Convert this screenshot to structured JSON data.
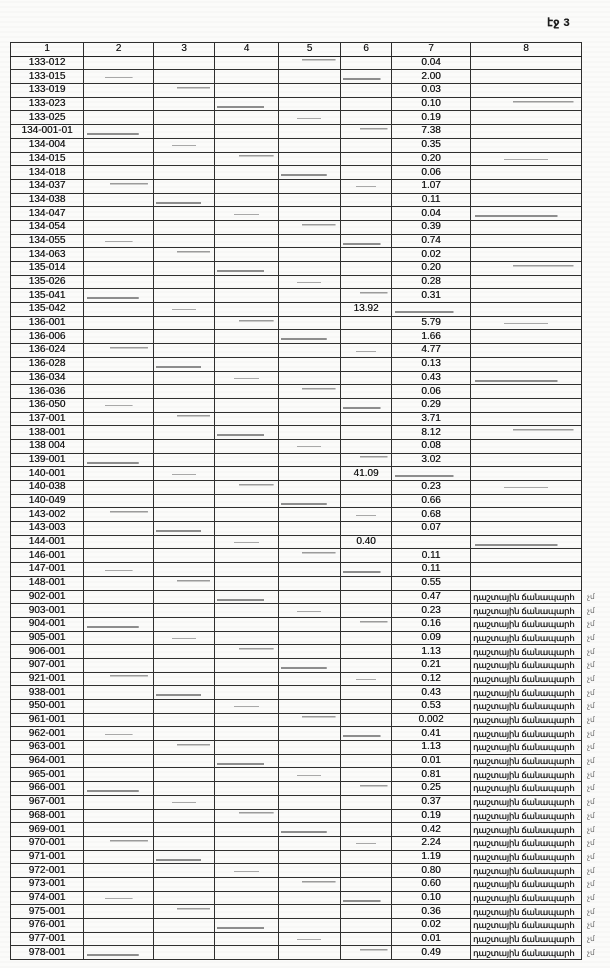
{
  "page": {
    "label": "էջ 3"
  },
  "table": {
    "headers": [
      "1",
      "2",
      "3",
      "4",
      "5",
      "6",
      "7",
      "8"
    ],
    "road_label": "դաշտային ճանապարհ",
    "margin_mark": "չմ",
    "rows": [
      {
        "code": "133-012",
        "c6": "",
        "c7": "0.04",
        "c8": "",
        "m": ""
      },
      {
        "code": "133-015",
        "c6": "",
        "c7": "2.00",
        "c8": "",
        "m": ""
      },
      {
        "code": "133-019",
        "c6": "",
        "c7": "0.03",
        "c8": "",
        "m": ""
      },
      {
        "code": "133-023",
        "c6": "",
        "c7": "0.10",
        "c8": "",
        "m": ""
      },
      {
        "code": "133-025",
        "c6": "",
        "c7": "0.19",
        "c8": "",
        "m": ""
      },
      {
        "code": "134-001-01",
        "c6": "",
        "c7": "7.38",
        "c8": "",
        "m": ""
      },
      {
        "code": "134-004",
        "c6": "",
        "c7": "0.35",
        "c8": "",
        "m": ""
      },
      {
        "code": "134-015",
        "c6": "",
        "c7": "0.20",
        "c8": "",
        "m": ""
      },
      {
        "code": "134-018",
        "c6": "",
        "c7": "0.06",
        "c8": "",
        "m": ""
      },
      {
        "code": "134-037",
        "c6": "",
        "c7": "1.07",
        "c8": "",
        "m": ""
      },
      {
        "code": "134-038",
        "c6": "",
        "c7": "0.11",
        "c8": "",
        "m": ""
      },
      {
        "code": "134-047",
        "c6": "",
        "c7": "0.04",
        "c8": "",
        "m": ""
      },
      {
        "code": "134-054",
        "c6": "",
        "c7": "0.39",
        "c8": "",
        "m": ""
      },
      {
        "code": "134-055",
        "c6": "",
        "c7": "0.74",
        "c8": "",
        "m": ""
      },
      {
        "code": "134-063",
        "c6": "",
        "c7": "0.02",
        "c8": "",
        "m": ""
      },
      {
        "code": "135-014",
        "c6": "",
        "c7": "0.20",
        "c8": "",
        "m": ""
      },
      {
        "code": "135-026",
        "c6": "",
        "c7": "0.28",
        "c8": "",
        "m": ""
      },
      {
        "code": "135-041",
        "c6": "",
        "c7": "0.31",
        "c8": "",
        "m": ""
      },
      {
        "code": "135-042",
        "c6": "13.92",
        "c7": "",
        "c8": "",
        "m": ""
      },
      {
        "code": "136-001",
        "c6": "",
        "c7": "5.79",
        "c8": "",
        "m": ""
      },
      {
        "code": "136-006",
        "c6": "",
        "c7": "1.66",
        "c8": "",
        "m": ""
      },
      {
        "code": "136-024",
        "c6": "",
        "c7": "4.77",
        "c8": "",
        "m": ""
      },
      {
        "code": "136-028",
        "c6": "",
        "c7": "0.13",
        "c8": "",
        "m": ""
      },
      {
        "code": "136-034",
        "c6": "",
        "c7": "0.43",
        "c8": "",
        "m": ""
      },
      {
        "code": "136-036",
        "c6": "",
        "c7": "0.06",
        "c8": "",
        "m": ""
      },
      {
        "code": "136-050",
        "c6": "",
        "c7": "0.29",
        "c8": "",
        "m": ""
      },
      {
        "code": "137-001",
        "c6": "",
        "c7": "3.71",
        "c8": "",
        "m": ""
      },
      {
        "code": "138-001",
        "c6": "",
        "c7": "8.12",
        "c8": "",
        "m": ""
      },
      {
        "code": "138 004",
        "c6": "",
        "c7": "0.08",
        "c8": "",
        "m": ""
      },
      {
        "code": "139-001",
        "c6": "",
        "c7": "3.02",
        "c8": "",
        "m": ""
      },
      {
        "code": "140-001",
        "c6": "41.09",
        "c7": "",
        "c8": "",
        "m": ""
      },
      {
        "code": "140-038",
        "c6": "",
        "c7": "0.23",
        "c8": "",
        "m": ""
      },
      {
        "code": "140-049",
        "c6": "",
        "c7": "0.66",
        "c8": "",
        "m": ""
      },
      {
        "code": "143-002",
        "c6": "",
        "c7": "0.68",
        "c8": "",
        "m": ""
      },
      {
        "code": "143-003",
        "c6": "",
        "c7": "0.07",
        "c8": "",
        "m": ""
      },
      {
        "code": "144-001",
        "c6": "0.40",
        "c7": "",
        "c8": "",
        "m": ""
      },
      {
        "code": "146-001",
        "c6": "",
        "c7": "0.11",
        "c8": "",
        "m": ""
      },
      {
        "code": "147-001",
        "c6": "",
        "c7": "0.11",
        "c8": "",
        "m": ""
      },
      {
        "code": "148-001",
        "c6": "",
        "c7": "0.55",
        "c8": "",
        "m": ""
      },
      {
        "code": "902-001",
        "c6": "",
        "c7": "0.47",
        "c8": "դաշտային ճանապարհ",
        "m": "չմ"
      },
      {
        "code": "903-001",
        "c6": "",
        "c7": "0.23",
        "c8": "դաշտային ճանապարհ",
        "m": "չմ"
      },
      {
        "code": "904-001",
        "c6": "",
        "c7": "0.16",
        "c8": "դաշտային ճանապարհ",
        "m": "չմ"
      },
      {
        "code": "905-001",
        "c6": "",
        "c7": "0.09",
        "c8": "դաշտային ճանապարհ",
        "m": "չմ"
      },
      {
        "code": "906-001",
        "c6": "",
        "c7": "1.13",
        "c8": "դաշտային ճանապարհ",
        "m": "չմ"
      },
      {
        "code": "907-001",
        "c6": "",
        "c7": "0.21",
        "c8": "դաշտային ճանապարհ",
        "m": "չմ"
      },
      {
        "code": "921-001",
        "c6": "",
        "c7": "0.12",
        "c8": "դաշտային ճանապարհ",
        "m": "չմ"
      },
      {
        "code": "938-001",
        "c6": "",
        "c7": "0.43",
        "c8": "դաշտային ճանապարհ",
        "m": "չմ"
      },
      {
        "code": "950-001",
        "c6": "",
        "c7": "0.53",
        "c8": "դաշտային ճանապարհ",
        "m": "չմ"
      },
      {
        "code": "961-001",
        "c6": "",
        "c7": "0.002",
        "c8": "դաշտային ճանապարհ",
        "m": "չմ"
      },
      {
        "code": "962-001",
        "c6": "",
        "c7": "0.41",
        "c8": "դաշտային ճանապարհ",
        "m": "չմ"
      },
      {
        "code": "963-001",
        "c6": "",
        "c7": "1.13",
        "c8": "դաշտային ճանապարհ",
        "m": "չմ"
      },
      {
        "code": "964-001",
        "c6": "",
        "c7": "0.01",
        "c8": "դաշտային ճանապարհ",
        "m": "չմ"
      },
      {
        "code": "965-001",
        "c6": "",
        "c7": "0.81",
        "c8": "դաշտային ճանապարհ",
        "m": "չմ"
      },
      {
        "code": "966-001",
        "c6": "",
        "c7": "0.25",
        "c8": "դաշտային ճանապարհ",
        "m": "չմ"
      },
      {
        "code": "967-001",
        "c6": "",
        "c7": "0.37",
        "c8": "դաշտային ճանապարհ",
        "m": "չմ"
      },
      {
        "code": "968-001",
        "c6": "",
        "c7": "0.19",
        "c8": "դաշտային ճանապարհ",
        "m": "չմ"
      },
      {
        "code": "969-001",
        "c6": "",
        "c7": "0.42",
        "c8": "դաշտային ճանապարհ",
        "m": "չմ"
      },
      {
        "code": "970-001",
        "c6": "",
        "c7": "2.24",
        "c8": "դաշտային ճանապարհ",
        "m": "չմ"
      },
      {
        "code": "971-001",
        "c6": "",
        "c7": "1.19",
        "c8": "դաշտային ճանապարհ",
        "m": "չմ"
      },
      {
        "code": "972-001",
        "c6": "",
        "c7": "0.80",
        "c8": "դաշտային ճանապարհ",
        "m": "չմ"
      },
      {
        "code": "973-001",
        "c6": "",
        "c7": "0.60",
        "c8": "դաշտային ճանապարհ",
        "m": "չմ"
      },
      {
        "code": "974-001",
        "c6": "",
        "c7": "0.10",
        "c8": "դաշտային ճանապարհ",
        "m": "չմ"
      },
      {
        "code": "975-001",
        "c6": "",
        "c7": "0.36",
        "c8": "դաշտային ճանապարհ",
        "m": "չմ"
      },
      {
        "code": "976-001",
        "c6": "",
        "c7": "0.02",
        "c8": "դաշտային ճանապարհ",
        "m": "չմ"
      },
      {
        "code": "977-001",
        "c6": "",
        "c7": "0.01",
        "c8": "դաշտային ճանապարհ",
        "m": "չմ"
      },
      {
        "code": "978-001",
        "c6": "",
        "c7": "0.49",
        "c8": "դաշտային ճանապարհ",
        "m": "չմ"
      }
    ]
  }
}
